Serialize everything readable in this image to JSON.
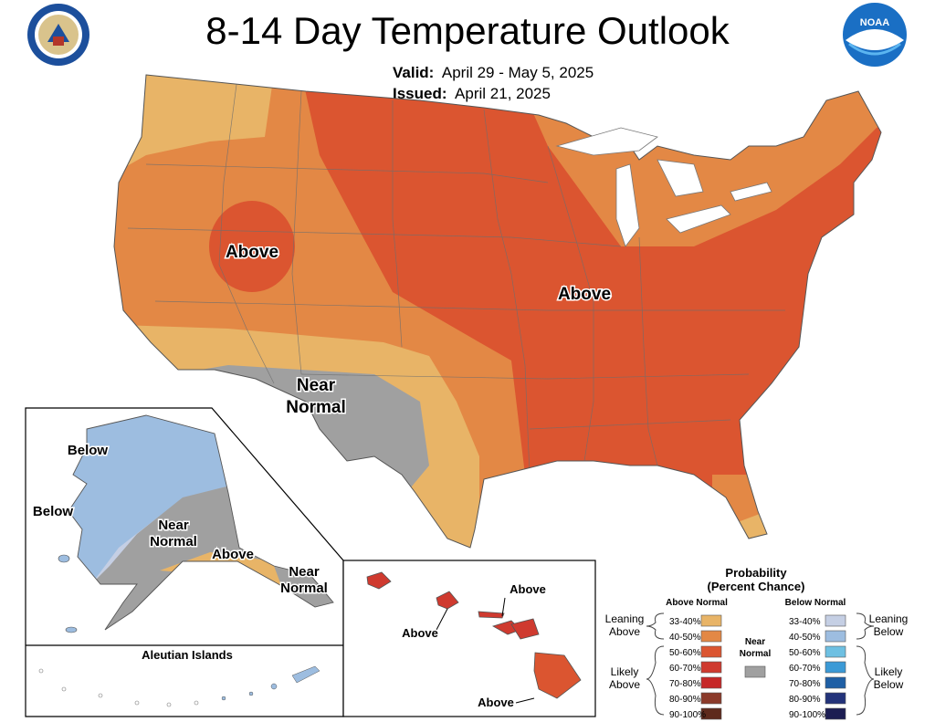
{
  "header": {
    "title": "8-14 Day Temperature Outlook",
    "valid_label": "Valid:",
    "valid_value": "April 29 - May 5, 2025",
    "issued_label": "Issued:",
    "issued_value": "April 21, 2025",
    "left_logo": "department-of-commerce-seal",
    "right_logo": "noaa-logo",
    "noaa_text": "NOAA"
  },
  "map": {
    "conus_labels": {
      "above_west": "Above",
      "above_east": "Above",
      "near_normal_1": "Near",
      "near_normal_2": "Normal"
    },
    "alaska_labels": {
      "below_1": "Below",
      "below_2": "Below",
      "near_1_a": "Near",
      "near_1_b": "Normal",
      "above": "Above",
      "near_2_a": "Near",
      "near_2_b": "Normal"
    },
    "aleutian_title": "Aleutian Islands",
    "hawaii_labels": {
      "above_1": "Above",
      "above_2": "Above",
      "above_3": "Above"
    }
  },
  "legend": {
    "title_1": "Probability",
    "title_2": "(Percent Chance)",
    "above_header": "Above Normal",
    "below_header": "Below Normal",
    "near_1": "Near",
    "near_2": "Normal",
    "leaning_above_1": "Leaning",
    "leaning_above_2": "Above",
    "likely_above_1": "Likely",
    "likely_above_2": "Above",
    "leaning_below_1": "Leaning",
    "leaning_below_2": "Below",
    "likely_below_1": "Likely",
    "likely_below_2": "Below",
    "above_bins": [
      "33-40%",
      "40-50%",
      "50-60%",
      "60-70%",
      "70-80%",
      "80-90%",
      "90-100%"
    ],
    "below_bins": [
      "33-40%",
      "40-50%",
      "50-60%",
      "60-70%",
      "70-80%",
      "80-90%",
      "90-100%"
    ],
    "above_colors": [
      "#e8b467",
      "#e38845",
      "#db5530",
      "#cf3a2f",
      "#c62828",
      "#8b3a2a",
      "#5e2a1c"
    ],
    "below_colors": [
      "#c5cfe4",
      "#9dbde0",
      "#6ec0e2",
      "#3b9ad6",
      "#1f5fa5",
      "#23337a",
      "#1c1d52"
    ],
    "near_color": "#a0a0a0"
  },
  "category_colors": {
    "above_33_40": "#e8b467",
    "above_40_50": "#e38845",
    "above_50_60": "#db5530",
    "above_60_70": "#cf3a2f",
    "below_33_40": "#c5cfe4",
    "below_40_50": "#9dbde0",
    "near_normal": "#a0a0a0"
  }
}
